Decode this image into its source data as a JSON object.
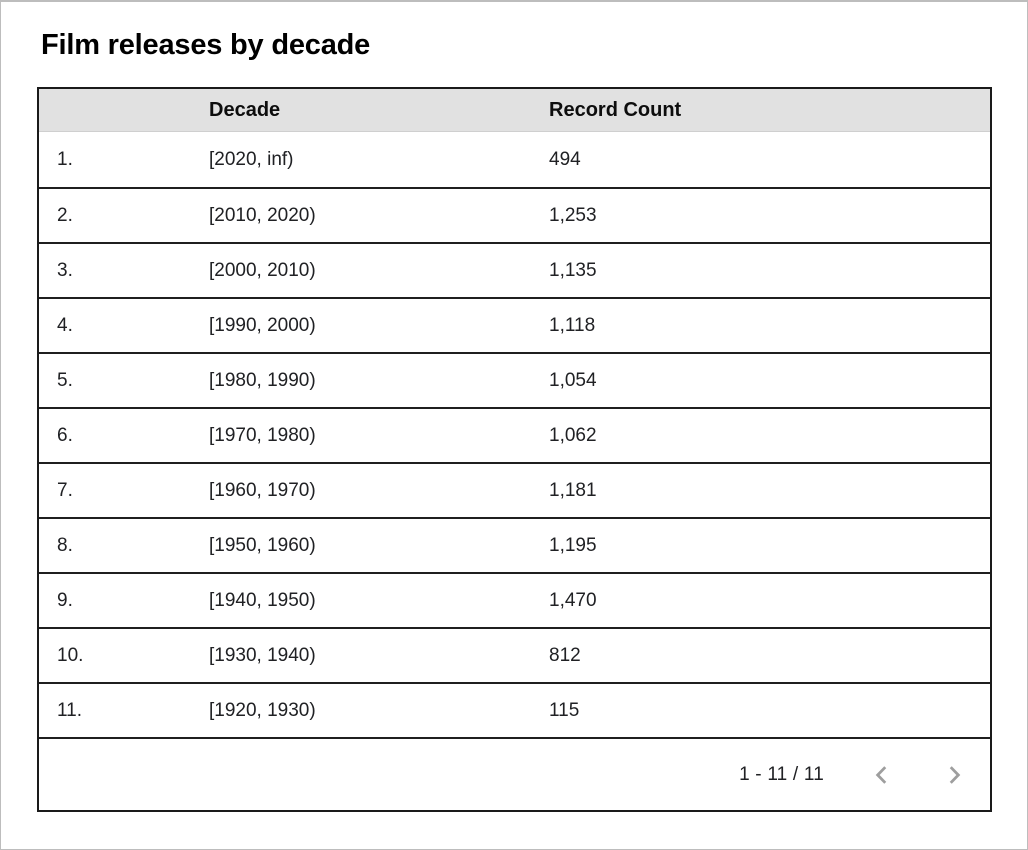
{
  "title": "Film releases by decade",
  "table": {
    "columns": {
      "index": "",
      "decade": "Decade",
      "record_count": "Record Count"
    },
    "rows": [
      {
        "index": "1.",
        "decade": "[2020, inf)",
        "count": "494"
      },
      {
        "index": "2.",
        "decade": "[2010, 2020)",
        "count": "1,253"
      },
      {
        "index": "3.",
        "decade": "[2000, 2010)",
        "count": "1,135"
      },
      {
        "index": "4.",
        "decade": "[1990, 2000)",
        "count": "1,118"
      },
      {
        "index": "5.",
        "decade": "[1980, 1990)",
        "count": "1,054"
      },
      {
        "index": "6.",
        "decade": "[1970, 1980)",
        "count": "1,062"
      },
      {
        "index": "7.",
        "decade": "[1960, 1970)",
        "count": "1,181"
      },
      {
        "index": "8.",
        "decade": "[1950, 1960)",
        "count": "1,195"
      },
      {
        "index": "9.",
        "decade": "[1940, 1950)",
        "count": "1,470"
      },
      {
        "index": "10.",
        "decade": "[1930, 1940)",
        "count": "812"
      },
      {
        "index": "11.",
        "decade": "[1920, 1930)",
        "count": "115"
      }
    ]
  },
  "pagination": {
    "range_label": "1 - 11 / 11",
    "prev_icon": "chevron-left",
    "next_icon": "chevron-right"
  },
  "colors": {
    "header_bg": "#e1e1e1",
    "border_dark": "#1f1f1f",
    "frame_border": "#bdbdbd",
    "body_text": "#202124",
    "chevron": "#9e9e9e"
  },
  "chart_data": {
    "type": "table",
    "title": "Film releases by decade",
    "columns": [
      "Decade",
      "Record Count"
    ],
    "rows": [
      [
        "[2020, inf)",
        494
      ],
      [
        "[2010, 2020)",
        1253
      ],
      [
        "[2000, 2010)",
        1135
      ],
      [
        "[1990, 2000)",
        1118
      ],
      [
        "[1980, 1990)",
        1054
      ],
      [
        "[1970, 1980)",
        1062
      ],
      [
        "[1960, 1970)",
        1181
      ],
      [
        "[1950, 1960)",
        1195
      ],
      [
        "[1940, 1950)",
        1470
      ],
      [
        "[1930, 1940)",
        812
      ],
      [
        "[1920, 1930)",
        115
      ]
    ],
    "row_count_shown": "1 - 11 / 11",
    "layout": {
      "header_shaded": true,
      "grid": "horizontal-rules",
      "pagination": true
    }
  }
}
